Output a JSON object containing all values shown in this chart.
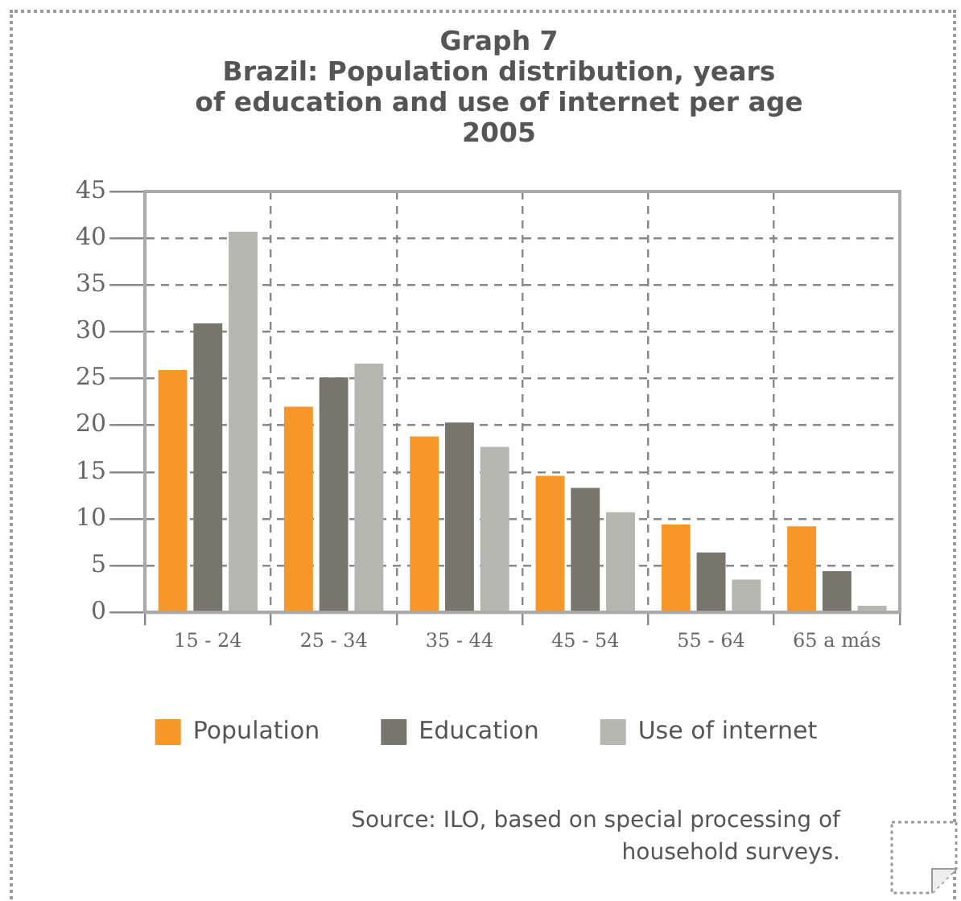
{
  "chart_data": {
    "type": "bar",
    "title": "Graph 7\nBrazil: Population distribution, years\nof education and use of internet per age\n2005",
    "categories": [
      "15 - 24",
      "25 - 34",
      "35 - 44",
      "45 - 54",
      "55 - 64",
      "65 a más"
    ],
    "series": [
      {
        "name": "Population",
        "color": "#f7972a",
        "values": [
          25.9,
          22.0,
          18.8,
          14.6,
          9.4,
          9.2
        ]
      },
      {
        "name": "Education",
        "color": "#76766c",
        "values": [
          30.9,
          25.1,
          20.3,
          13.3,
          6.4,
          4.4
        ]
      },
      {
        "name": "Use of internet",
        "color": "#b6b6b0",
        "values": [
          40.7,
          26.6,
          17.7,
          10.7,
          3.5,
          0.7
        ]
      }
    ],
    "ylim": [
      0,
      45
    ],
    "yticks": [
      0,
      5,
      10,
      15,
      20,
      25,
      30,
      35,
      40,
      45
    ],
    "grid": true,
    "legend": "bottom",
    "annotations": [
      "Source: ILO, based on special processing of household surveys."
    ]
  }
}
